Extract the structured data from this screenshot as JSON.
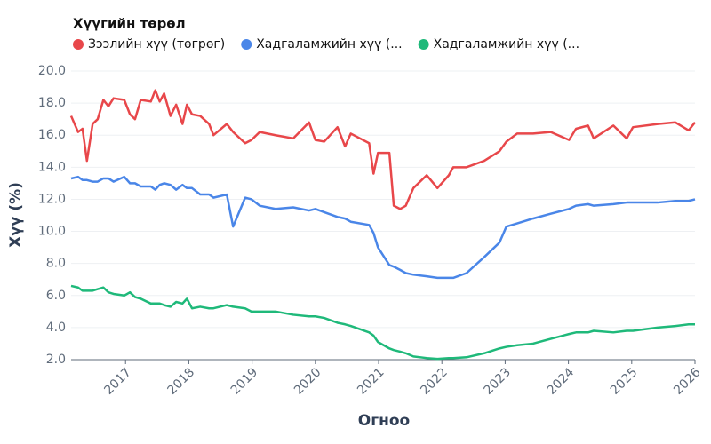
{
  "chart_data": {
    "type": "line",
    "legend_title": "Хүүгийн төрөл",
    "xlabel": "Огноо",
    "ylabel": "Хүү (%)",
    "xlim": [
      2016.14,
      2026
    ],
    "xticks": [
      2017,
      2018,
      2019,
      2020,
      2021,
      2022,
      2023,
      2024,
      2025,
      2026
    ],
    "ylim": [
      2,
      20
    ],
    "yticks": [
      {
        "value": 2,
        "label": "2.0"
      },
      {
        "value": 4,
        "label": "4.0"
      },
      {
        "value": 6,
        "label": "6.0"
      },
      {
        "value": 8,
        "label": "8.0"
      },
      {
        "value": 10,
        "label": "10.0"
      },
      {
        "value": 12,
        "label": "12.0"
      },
      {
        "value": 14,
        "label": "14.0"
      },
      {
        "value": 16,
        "label": "16.0"
      },
      {
        "value": 18,
        "label": "18.0"
      },
      {
        "value": 20,
        "label": "20.0"
      }
    ],
    "grid": true,
    "x": [
      2016.14,
      2016.25,
      2016.32,
      2016.39,
      2016.48,
      2016.56,
      2016.65,
      2016.73,
      2016.81,
      2016.98,
      2017.07,
      2017.15,
      2017.24,
      2017.4,
      2017.47,
      2017.54,
      2017.61,
      2017.71,
      2017.8,
      2017.9,
      2017.97,
      2018.05,
      2018.18,
      2018.32,
      2018.39,
      2018.6,
      2018.7,
      2018.89,
      2018.99,
      2019.12,
      2019.37,
      2019.65,
      2019.9,
      2020.0,
      2020.14,
      2020.35,
      2020.47,
      2020.56,
      2020.85,
      2020.92,
      2020.99,
      2021.17,
      2021.24,
      2021.34,
      2021.43,
      2021.55,
      2021.76,
      2021.93,
      2022.11,
      2022.18,
      2022.39,
      2022.67,
      2022.91,
      2023.02,
      2023.19,
      2023.44,
      2023.72,
      2024.01,
      2024.12,
      2024.31,
      2024.4,
      2024.71,
      2024.92,
      2025.02,
      2025.41,
      2025.69,
      2025.9,
      2026.0
    ],
    "series": [
      {
        "name": "Зээлийн хүү (төгрөг)",
        "color": "#e8474a",
        "values": [
          17.2,
          16.2,
          16.4,
          14.4,
          16.7,
          17.0,
          18.2,
          17.8,
          18.3,
          18.2,
          17.3,
          17.0,
          18.2,
          18.1,
          18.8,
          18.1,
          18.6,
          17.2,
          17.9,
          16.7,
          17.9,
          17.3,
          17.2,
          16.7,
          16.0,
          16.7,
          16.2,
          15.5,
          15.7,
          16.2,
          16.0,
          15.8,
          16.8,
          15.7,
          15.6,
          16.5,
          15.3,
          16.1,
          15.5,
          13.6,
          14.9,
          14.9,
          11.6,
          11.4,
          11.6,
          12.7,
          13.5,
          12.7,
          13.5,
          14.0,
          14.0,
          14.4,
          15.0,
          15.6,
          16.1,
          16.1,
          16.2,
          15.7,
          16.4,
          16.6,
          15.8,
          16.6,
          15.8,
          16.5,
          16.7,
          16.8,
          16.3,
          16.8
        ]
      },
      {
        "name": "Хадгаламжийн хүү (...",
        "color": "#4a86e8",
        "values": [
          13.3,
          13.4,
          13.2,
          13.2,
          13.1,
          13.1,
          13.3,
          13.3,
          13.1,
          13.4,
          13.0,
          13.0,
          12.8,
          12.8,
          12.6,
          12.9,
          13.0,
          12.9,
          12.6,
          12.9,
          12.7,
          12.7,
          12.3,
          12.3,
          12.1,
          12.3,
          10.3,
          12.1,
          12.0,
          11.6,
          11.4,
          11.5,
          11.3,
          11.4,
          11.2,
          10.9,
          10.8,
          10.6,
          10.4,
          9.9,
          9.0,
          7.9,
          7.8,
          7.6,
          7.4,
          7.3,
          7.2,
          7.1,
          7.1,
          7.1,
          7.4,
          8.4,
          9.3,
          10.3,
          10.5,
          10.8,
          11.1,
          11.4,
          11.6,
          11.7,
          11.6,
          11.7,
          11.8,
          11.8,
          11.8,
          11.9,
          11.9,
          12.0
        ]
      },
      {
        "name": "Хадгаламжийн хүү (...",
        "color": "#1fb97a",
        "values": [
          6.6,
          6.5,
          6.3,
          6.3,
          6.3,
          6.4,
          6.5,
          6.2,
          6.1,
          6.0,
          6.2,
          5.9,
          5.8,
          5.5,
          5.5,
          5.5,
          5.4,
          5.3,
          5.6,
          5.5,
          5.8,
          5.2,
          5.3,
          5.2,
          5.2,
          5.4,
          5.3,
          5.2,
          5.0,
          5.0,
          5.0,
          4.8,
          4.7,
          4.7,
          4.6,
          4.3,
          4.2,
          4.1,
          3.7,
          3.5,
          3.1,
          2.7,
          2.6,
          2.5,
          2.4,
          2.2,
          2.1,
          2.05,
          2.1,
          2.1,
          2.15,
          2.4,
          2.7,
          2.8,
          2.9,
          3.0,
          3.3,
          3.6,
          3.7,
          3.7,
          3.8,
          3.7,
          3.8,
          3.8,
          4.0,
          4.1,
          4.2,
          4.2
        ]
      }
    ]
  }
}
